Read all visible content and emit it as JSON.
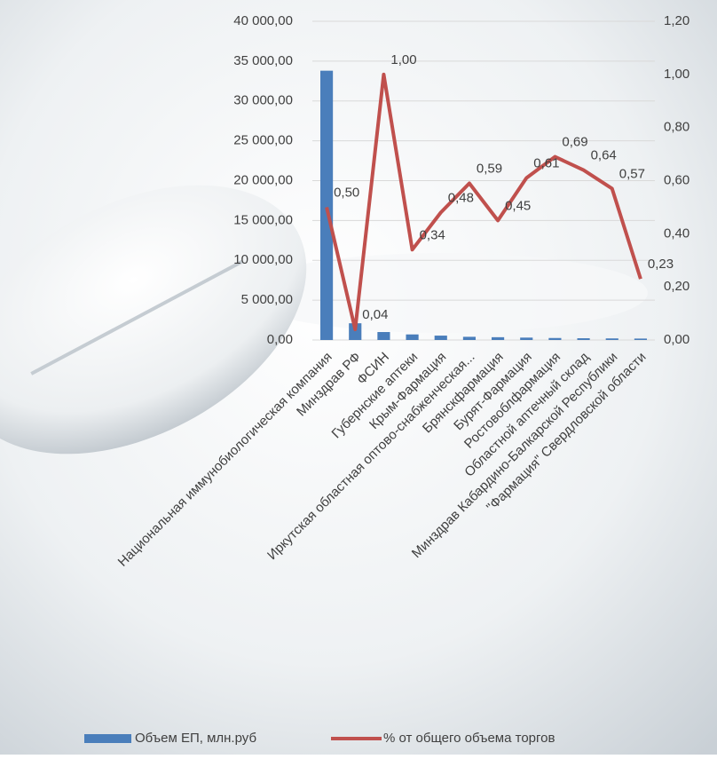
{
  "chart_data": {
    "type": "combo",
    "categories": [
      "Национальная иммунобиологическая компания",
      "Минздрав РФ",
      "ФСИН",
      "Губернские аптеки",
      "Крым-Фармация",
      "Иркутская областная оптово-снабженческая...",
      "Брянскфармация",
      "Бурят-Фармация",
      "Ростовоблфармация",
      "Областной аптечный склад",
      "Минздрав Кабардино-Балкарской Республики",
      "\"Фармация\" Свердловской области"
    ],
    "series": [
      {
        "name": "Объем ЕП, млн.руб",
        "type": "bar",
        "color": "#4a7ebb",
        "values": [
          33800,
          2100,
          1000,
          700,
          550,
          400,
          350,
          300,
          250,
          220,
          200,
          180
        ]
      },
      {
        "name": "% от общего объема торгов",
        "type": "line",
        "axis": "y2",
        "color": "#c0504d",
        "values": [
          0.5,
          0.04,
          1.0,
          0.34,
          0.48,
          0.59,
          0.45,
          0.61,
          0.69,
          0.64,
          0.57,
          0.23
        ],
        "value_labels": [
          "0,50",
          "0,04",
          "1,00",
          "0,34",
          "0,48",
          "0,59",
          "0,45",
          "0,61",
          "0,69",
          "0,64",
          "0,57",
          "0,23"
        ]
      }
    ],
    "ylim": [
      0,
      40000
    ],
    "yticks": [
      {
        "value": 0,
        "label": "0,00"
      },
      {
        "value": 5000,
        "label": "5 000,00"
      },
      {
        "value": 10000,
        "label": "10 000,00"
      },
      {
        "value": 15000,
        "label": "15 000,00"
      },
      {
        "value": 20000,
        "label": "20 000,00"
      },
      {
        "value": 25000,
        "label": "25 000,00"
      },
      {
        "value": 30000,
        "label": "30 000,00"
      },
      {
        "value": 35000,
        "label": "35 000,00"
      },
      {
        "value": 40000,
        "label": "40 000,00"
      }
    ],
    "y2lim": [
      0,
      1.2
    ],
    "y2ticks": [
      {
        "value": 0,
        "label": "0,00"
      },
      {
        "value": 0.2,
        "label": "0,20"
      },
      {
        "value": 0.4,
        "label": "0,40"
      },
      {
        "value": 0.6,
        "label": "0,60"
      },
      {
        "value": 0.8,
        "label": "0,80"
      },
      {
        "value": 1.0,
        "label": "1,00"
      },
      {
        "value": 1.2,
        "label": "1,20"
      }
    ],
    "grid": true,
    "legend": "bottom"
  }
}
